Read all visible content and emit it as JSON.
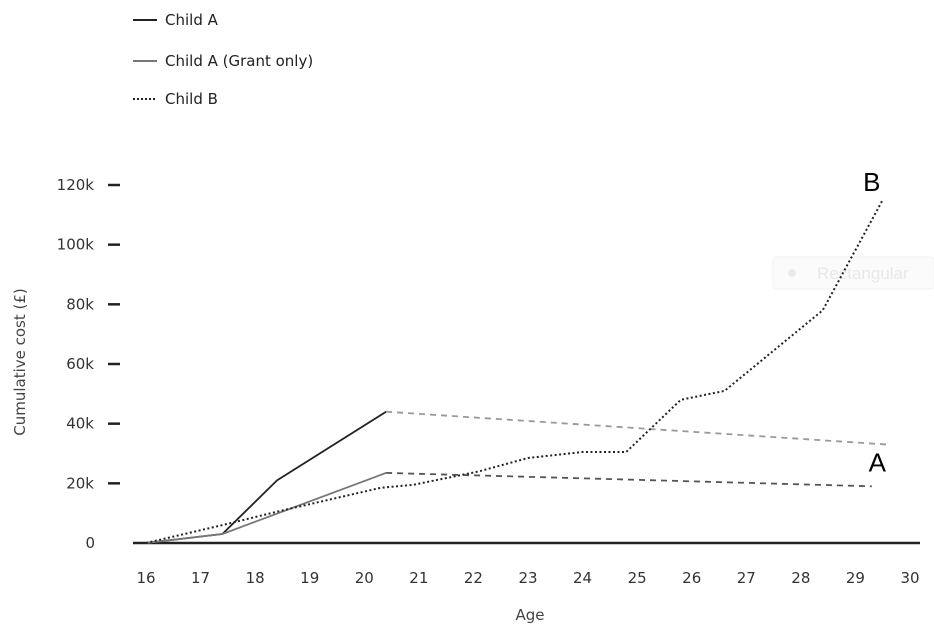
{
  "chart_data": {
    "type": "line",
    "title": "",
    "xlabel": "Age",
    "ylabel": "Cumulative cost (£)",
    "xlim": [
      16,
      30
    ],
    "ylim": [
      0,
      120000
    ],
    "x_ticks": [
      "16",
      "17",
      "18",
      "19",
      "20",
      "21",
      "22",
      "23",
      "24",
      "25",
      "26",
      "27",
      "28",
      "29",
      "30"
    ],
    "y_ticks": [
      "0",
      "20k",
      "40k",
      "60k",
      "80k",
      "100k",
      "120k"
    ],
    "grid": false,
    "legend_position": "top-left",
    "legend": [
      {
        "label": "Child A",
        "style": "solid",
        "color": "#222222"
      },
      {
        "label": "Child A (Grant only)",
        "style": "solid",
        "color": "#777777"
      },
      {
        "label": "Child B",
        "style": "dotted",
        "color": "#222222"
      }
    ],
    "series": [
      {
        "name": "Child A",
        "style": "solid",
        "color": "#222222",
        "x": [
          16,
          17.4,
          18.4,
          20.4
        ],
        "y": [
          0,
          3000,
          21000,
          44000
        ]
      },
      {
        "name": "Child A",
        "style": "dashed",
        "color": "#999999",
        "x": [
          20.4,
          29.6
        ],
        "y": [
          44000,
          33000
        ]
      },
      {
        "name": "Child A (Grant only)",
        "style": "solid",
        "color": "#777777",
        "x": [
          16,
          17.4,
          20.4
        ],
        "y": [
          0,
          3000,
          23500
        ]
      },
      {
        "name": "Child A (Grant only)",
        "style": "dashed",
        "color": "#555555",
        "x": [
          20.4,
          29.3
        ],
        "y": [
          23500,
          19000
        ]
      },
      {
        "name": "Child B",
        "style": "dotted",
        "color": "#222222",
        "x": [
          16,
          17.4,
          18.4,
          20.3,
          20.9,
          22.1,
          23.0,
          24.0,
          24.8,
          25.8,
          26.6,
          28.4,
          29.5
        ],
        "y": [
          0,
          6000,
          10500,
          18500,
          19500,
          24000,
          28500,
          30500,
          30500,
          48000,
          51000,
          78000,
          115000
        ]
      }
    ],
    "annotations": [
      {
        "text": "B",
        "x": 29.3,
        "y": 118000
      },
      {
        "text": "A",
        "x": 29.4,
        "y": 24000
      }
    ]
  },
  "watermark": {
    "text": "Rectangular"
  }
}
